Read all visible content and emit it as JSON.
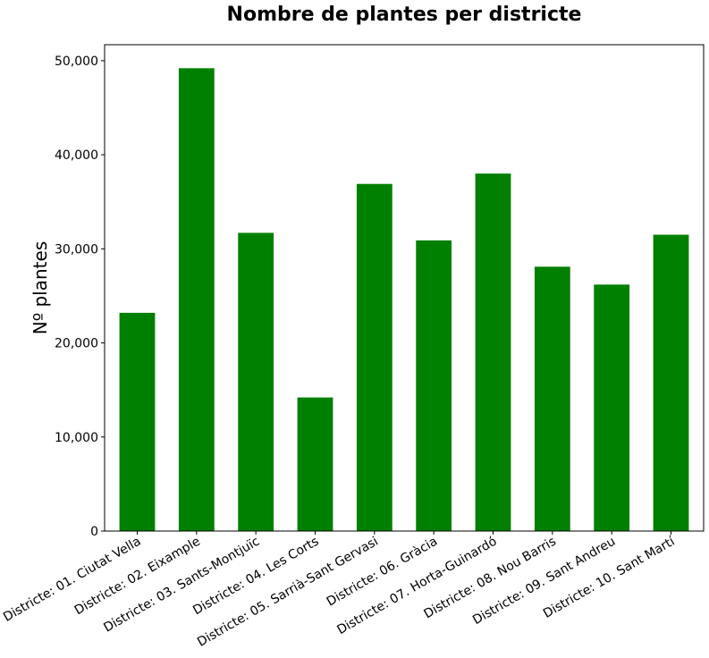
{
  "chart_data": {
    "type": "bar",
    "title": "Nombre de plantes per districte",
    "ylabel": "Nº plantes",
    "xlabel": "",
    "categories": [
      "Districte: 01. Ciutat Vella",
      "Districte: 02. Eixample",
      "Districte: 03. Sants-Montjuïc",
      "Districte: 04. Les Corts",
      "Districte: 05. Sarrià-Sant Gervasi",
      "Districte: 06. Gràcia",
      "Districte: 07. Horta-Guinardó",
      "Districte: 08. Nou Barris",
      "Districte: 09. Sant Andreu",
      "Districte: 10. Sant Martí"
    ],
    "values": [
      23200,
      49200,
      31700,
      14200,
      36900,
      30900,
      38000,
      28100,
      26200,
      31500
    ],
    "ylim": [
      0,
      51700
    ],
    "yticks": [
      0,
      10000,
      20000,
      30000,
      40000,
      50000
    ],
    "ytick_labels": [
      "0",
      "10,000",
      "20,000",
      "30,000",
      "40,000",
      "50,000"
    ],
    "bar_color": "#008000",
    "grid": false,
    "legend": "none"
  }
}
